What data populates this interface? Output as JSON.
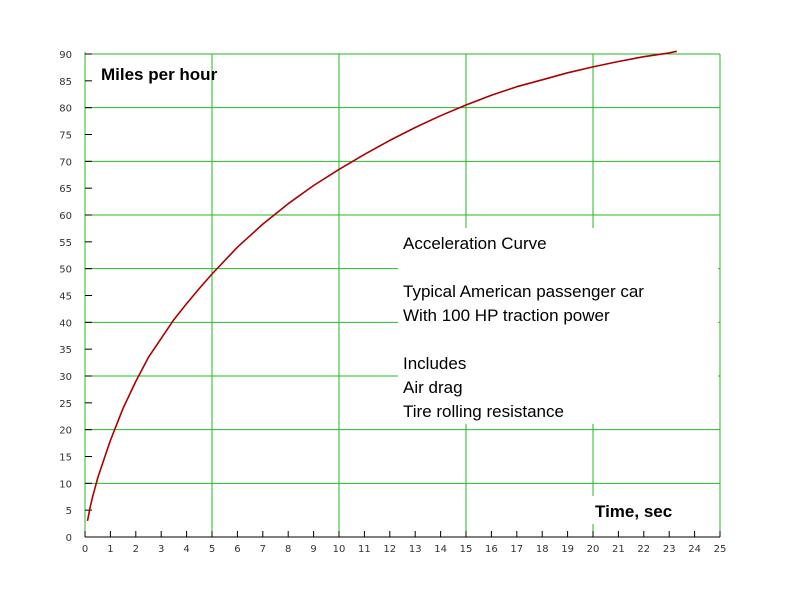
{
  "chart_data": {
    "type": "line",
    "ylabel": "Miles per hour",
    "xlabel": "Time, sec",
    "xlim": [
      0,
      25
    ],
    "ylim": [
      0,
      90
    ],
    "x_ticks": [
      "0",
      "1",
      "2",
      "3",
      "4",
      "5",
      "6",
      "7",
      "8",
      "9",
      "10",
      "11",
      "12",
      "13",
      "14",
      "15",
      "16",
      "17",
      "18",
      "19",
      "20",
      "21",
      "22",
      "23",
      "24",
      "25"
    ],
    "y_ticks": [
      "0",
      "5",
      "10",
      "15",
      "20",
      "25",
      "30",
      "35",
      "40",
      "45",
      "50",
      "55",
      "60",
      "65",
      "70",
      "75",
      "80",
      "85",
      "90"
    ],
    "x_major_grid": [
      5,
      10,
      15,
      20
    ],
    "y_major_grid": [
      10,
      20,
      30,
      40,
      50,
      60,
      70,
      80,
      90
    ],
    "grid": true,
    "annotation_lines": [
      "Acceleration Curve",
      "",
      "Typical American passenger car",
      "With 100 HP traction power",
      "",
      "Includes",
      "Air drag",
      "Tire rolling resistance"
    ],
    "series": [
      {
        "x": [
          0.1,
          0.2,
          0.3,
          0.5,
          0.75,
          1,
          1.5,
          2,
          2.5,
          3,
          3.5,
          4,
          4.5,
          5,
          6,
          7,
          8,
          9,
          10,
          11,
          12,
          13,
          14,
          15,
          16,
          17,
          18,
          19,
          20,
          21,
          22,
          23,
          23.3
        ],
        "y": [
          3,
          5.5,
          7.5,
          11,
          14.5,
          18,
          24,
          29,
          33.5,
          37,
          40.5,
          43.5,
          46.3,
          49,
          54,
          58.3,
          62.1,
          65.5,
          68.5,
          71.3,
          73.9,
          76.3,
          78.5,
          80.5,
          82.3,
          83.9,
          85.2,
          86.5,
          87.6,
          88.6,
          89.5,
          90.2,
          90.5
        ],
        "color": "#aa0000"
      }
    ],
    "colors": {
      "grid": "#22bb22",
      "axis": "#000000",
      "line": "#aa0000"
    }
  }
}
